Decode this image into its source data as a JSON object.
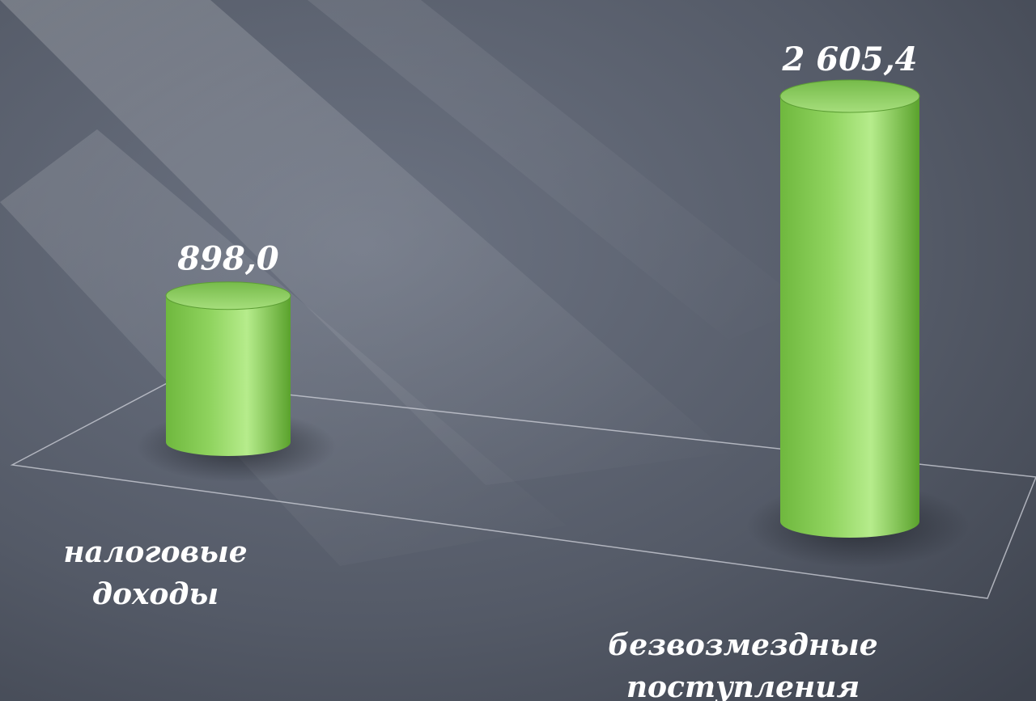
{
  "chart_data": {
    "type": "bar",
    "categories": [
      "налоговые доходы",
      "безвозмездные поступления"
    ],
    "category_lines": [
      [
        "налоговые",
        "доходы"
      ],
      [
        "безвозмездные",
        "поступления"
      ]
    ],
    "values": [
      898.0,
      2605.4
    ],
    "value_labels": [
      "898,0",
      "2 605,4"
    ],
    "bar_color": "#8fd35e",
    "background_color": "#565d6b",
    "grid": false,
    "legend": "none"
  }
}
